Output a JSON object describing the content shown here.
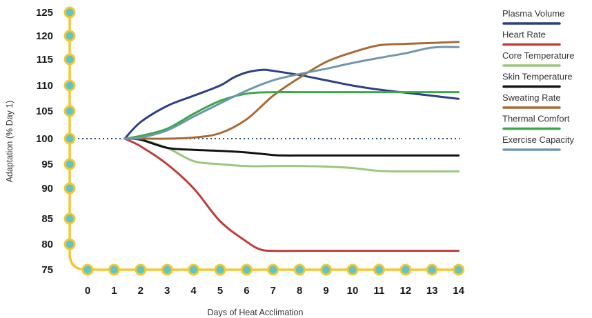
{
  "chart_data": {
    "type": "line",
    "xlabel": "Days of Heat Acclimation",
    "ylabel": "Adaptation (% Day 1)",
    "x_ticks": [
      0,
      1,
      2,
      3,
      4,
      5,
      6,
      7,
      8,
      9,
      10,
      11,
      12,
      13,
      14
    ],
    "y_ticks": [
      75,
      80,
      85,
      90,
      95,
      100,
      105,
      110,
      115,
      120,
      125
    ],
    "ylim": [
      75,
      125
    ],
    "xlim": [
      0,
      14
    ],
    "baseline": 100,
    "legend_position": "right",
    "axis_color": "#f5c633",
    "marker_color": "#5ec4c4",
    "baseline_color": "#2c4a6b",
    "series": [
      {
        "name": "Plasma Volume",
        "color": "#2b3f86",
        "x": [
          1.4,
          2,
          3,
          4,
          5,
          5.5,
          6,
          6.6,
          7,
          8,
          9,
          10,
          11,
          12,
          13,
          14
        ],
        "y": [
          100,
          103,
          106,
          108,
          110,
          111.5,
          112.5,
          113,
          112.8,
          112,
          111,
          110,
          109.2,
          108.6,
          108,
          107.4
        ]
      },
      {
        "name": "Heart Rate",
        "color": "#c03a3a",
        "x": [
          1.4,
          2,
          3,
          4,
          5,
          6,
          6.5,
          7,
          8,
          9,
          10,
          11,
          12,
          13,
          14
        ],
        "y": [
          100,
          98.5,
          95,
          90,
          84.5,
          80.5,
          79,
          78.7,
          78.7,
          78.7,
          78.7,
          78.7,
          78.7,
          78.7,
          78.7
        ]
      },
      {
        "name": "Core Temperature",
        "color": "#9bc67e",
        "x": [
          1.4,
          2,
          3,
          4,
          5,
          6,
          7,
          8,
          9,
          10,
          11,
          12,
          13,
          14
        ],
        "y": [
          100,
          99.8,
          98.2,
          95.6,
          95,
          94.6,
          94.6,
          94.6,
          94.5,
          94.2,
          93.6,
          93.5,
          93.5,
          93.5
        ]
      },
      {
        "name": "Skin Temperature",
        "color": "#111111",
        "x": [
          1.4,
          2,
          3,
          4,
          5,
          6,
          7,
          7.5,
          8,
          9,
          10,
          11,
          12,
          13,
          14
        ],
        "y": [
          100,
          99.8,
          98.2,
          97.8,
          97.6,
          97.3,
          96.8,
          96.7,
          96.7,
          96.7,
          96.7,
          96.7,
          96.7,
          96.7,
          96.7
        ]
      },
      {
        "name": "Sweating Rate",
        "color": "#a86a34",
        "x": [
          1.4,
          2,
          3,
          4,
          5,
          6,
          7,
          8,
          9,
          10,
          11,
          12,
          13,
          14
        ],
        "y": [
          100,
          100,
          100,
          100.2,
          101,
          103.5,
          108,
          111.5,
          114.5,
          116.5,
          118,
          118.3,
          118.5,
          118.7
        ]
      },
      {
        "name": "Thermal Comfort",
        "color": "#3aa84a",
        "x": [
          1.4,
          2,
          3,
          4,
          5,
          6,
          7,
          8,
          9,
          10,
          11,
          12,
          13,
          14
        ],
        "y": [
          100,
          100.5,
          101.8,
          104.5,
          107,
          108.4,
          108.7,
          108.7,
          108.7,
          108.7,
          108.7,
          108.7,
          108.7,
          108.7
        ]
      },
      {
        "name": "Exercise Capacity",
        "color": "#6f96b0",
        "x": [
          1.4,
          2,
          3,
          4,
          5,
          6,
          7,
          8,
          9,
          10,
          11,
          12,
          13,
          14
        ],
        "y": [
          100,
          100.2,
          101.5,
          104,
          106.5,
          109,
          111,
          112.2,
          113.2,
          114.3,
          115.3,
          116.3,
          117.5,
          117.6
        ]
      }
    ]
  }
}
